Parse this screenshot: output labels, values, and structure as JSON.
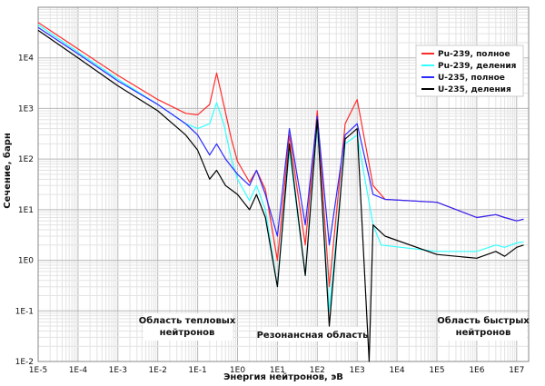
{
  "chart_data": {
    "type": "line",
    "xlabel": "Энергия нейтронов, эВ",
    "ylabel": "Сечение, барн",
    "xscale": "log",
    "yscale": "log",
    "xlim": [
      1e-05,
      20000000.0
    ],
    "ylim": [
      0.01,
      100000.0
    ],
    "grid": true,
    "legend_position": "top-right",
    "x_ticks": [
      "1E-5",
      "1E-4",
      "1E-3",
      "1E-2",
      "1E-1",
      "1E0",
      "1E1",
      "1E2",
      "1E3",
      "1E4",
      "1E5",
      "1E6",
      "1E7"
    ],
    "y_ticks": [
      "1E-2",
      "1E-1",
      "1E0",
      "1E1",
      "1E2",
      "1E3",
      "1E4"
    ],
    "annotations": [
      "Область тепловых нейтронов",
      "Резонансная область",
      "Область быстрых нейтронов"
    ],
    "series": [
      {
        "name": "Pu-239, полное",
        "color": "#ff2a2a",
        "points": [
          [
            1e-05,
            50000
          ],
          [
            0.0001,
            15000
          ],
          [
            0.001,
            4500
          ],
          [
            0.01,
            1500
          ],
          [
            0.05,
            800
          ],
          [
            0.1,
            750
          ],
          [
            0.2,
            1200
          ],
          [
            0.3,
            5000
          ],
          [
            0.45,
            1200
          ],
          [
            0.7,
            250
          ],
          [
            1,
            90
          ],
          [
            2,
            35
          ],
          [
            3,
            60
          ],
          [
            5,
            25
          ],
          [
            10,
            1
          ],
          [
            20,
            300
          ],
          [
            50,
            2
          ],
          [
            100,
            900
          ],
          [
            200,
            0.3
          ],
          [
            500,
            500
          ],
          [
            1000,
            1500
          ],
          [
            2500,
            30
          ],
          [
            5000,
            16
          ],
          [
            100000.0,
            14
          ],
          [
            1000000.0,
            7
          ],
          [
            3000000.0,
            8
          ],
          [
            5000000.0,
            7
          ],
          [
            10000000.0,
            6
          ],
          [
            15000000.0,
            6.5
          ]
        ]
      },
      {
        "name": "Pu-239, деления",
        "color": "#33ffff",
        "points": [
          [
            1e-05,
            45000
          ],
          [
            0.0001,
            13000
          ],
          [
            0.001,
            3800
          ],
          [
            0.01,
            1200
          ],
          [
            0.05,
            500
          ],
          [
            0.1,
            400
          ],
          [
            0.2,
            500
          ],
          [
            0.3,
            1300
          ],
          [
            0.45,
            500
          ],
          [
            0.7,
            100
          ],
          [
            1,
            40
          ],
          [
            2,
            15
          ],
          [
            3,
            30
          ],
          [
            5,
            10
          ],
          [
            10,
            0.3
          ],
          [
            20,
            150
          ],
          [
            50,
            0.5
          ],
          [
            100,
            500
          ],
          [
            200,
            0.1
          ],
          [
            500,
            200
          ],
          [
            1000,
            300
          ],
          [
            2500,
            5
          ],
          [
            4000,
            2
          ],
          [
            100000.0,
            1.5
          ],
          [
            1000000.0,
            1.5
          ],
          [
            3000000.0,
            2.0
          ],
          [
            5000000.0,
            1.8
          ],
          [
            10000000.0,
            2.2
          ],
          [
            15000000.0,
            2.3
          ]
        ]
      },
      {
        "name": "U-235, полное",
        "color": "#2a2aff",
        "points": [
          [
            1e-05,
            40000
          ],
          [
            0.0001,
            12000
          ],
          [
            0.001,
            3500
          ],
          [
            0.01,
            1200
          ],
          [
            0.05,
            500
          ],
          [
            0.1,
            300
          ],
          [
            0.2,
            120
          ],
          [
            0.3,
            200
          ],
          [
            0.5,
            100
          ],
          [
            1,
            50
          ],
          [
            2,
            30
          ],
          [
            3,
            60
          ],
          [
            5,
            20
          ],
          [
            10,
            3
          ],
          [
            20,
            400
          ],
          [
            50,
            5
          ],
          [
            100,
            700
          ],
          [
            200,
            2
          ],
          [
            500,
            300
          ],
          [
            1000,
            500
          ],
          [
            2500,
            20
          ],
          [
            5000,
            16
          ],
          [
            100000.0,
            14
          ],
          [
            1000000.0,
            7
          ],
          [
            3000000.0,
            8
          ],
          [
            5000000.0,
            7
          ],
          [
            10000000.0,
            6
          ],
          [
            15000000.0,
            6.5
          ]
        ]
      },
      {
        "name": "U-235, деления",
        "color": "#000000",
        "points": [
          [
            1e-05,
            35000
          ],
          [
            0.0001,
            10000
          ],
          [
            0.001,
            2800
          ],
          [
            0.01,
            900
          ],
          [
            0.05,
            300
          ],
          [
            0.1,
            150
          ],
          [
            0.2,
            40
          ],
          [
            0.3,
            60
          ],
          [
            0.5,
            30
          ],
          [
            1,
            20
          ],
          [
            2,
            10
          ],
          [
            3,
            20
          ],
          [
            5,
            7
          ],
          [
            10,
            0.3
          ],
          [
            20,
            200
          ],
          [
            50,
            0.5
          ],
          [
            100,
            600
          ],
          [
            200,
            0.05
          ],
          [
            500,
            250
          ],
          [
            1000,
            400
          ],
          [
            2000,
            0.01
          ],
          [
            2500,
            5
          ],
          [
            5000,
            3
          ],
          [
            100000.0,
            1.3
          ],
          [
            1000000.0,
            1.1
          ],
          [
            3000000.0,
            1.5
          ],
          [
            5000000.0,
            1.2
          ],
          [
            10000000.0,
            1.8
          ],
          [
            15000000.0,
            2.0
          ]
        ]
      }
    ]
  }
}
